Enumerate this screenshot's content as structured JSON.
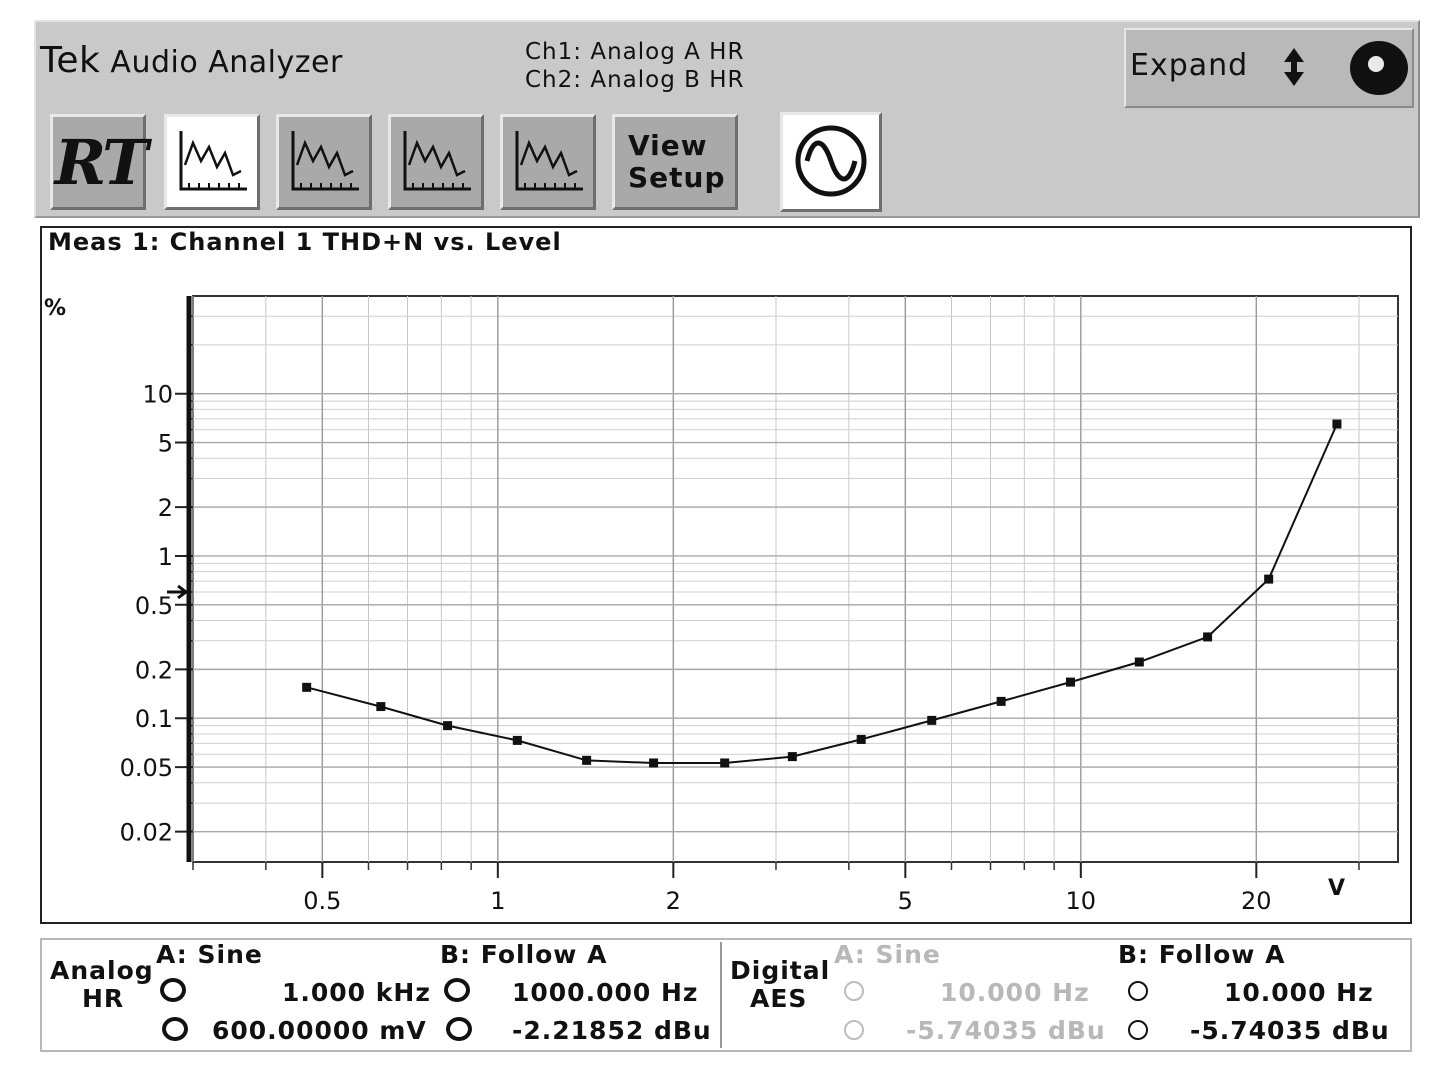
{
  "header": {
    "brand": "Tek",
    "app_name": "Audio Analyzer",
    "ch1": "Ch1: Analog A HR",
    "ch2": "Ch2: Analog B HR",
    "expand_label": "Expand"
  },
  "toolbar": {
    "rt_label": "RT",
    "view_setup_line1": "View",
    "view_setup_line2": "Setup",
    "buttons": [
      "RT",
      "graph-1",
      "graph-2",
      "graph-3",
      "graph-4",
      "view-setup",
      "generator"
    ],
    "selected": "graph-1"
  },
  "plot": {
    "title": "Meas 1: Channel 1 THD+N vs. Level",
    "y_unit": "%",
    "x_unit": "V"
  },
  "chart_data": {
    "type": "line",
    "title": "Meas 1: Channel 1 THD+N vs. Level",
    "xlabel": "V",
    "ylabel": "%",
    "x_scale": "log",
    "y_scale": "log",
    "xlim": [
      0.3,
      35
    ],
    "ylim": [
      0.013,
      40
    ],
    "grid": true,
    "x_ticks": [
      {
        "v": 0.5,
        "label": "0.5"
      },
      {
        "v": 1,
        "label": "1"
      },
      {
        "v": 2,
        "label": "2"
      },
      {
        "v": 5,
        "label": "5"
      },
      {
        "v": 10,
        "label": "10"
      },
      {
        "v": 20,
        "label": "20"
      }
    ],
    "y_ticks": [
      {
        "v": 0.02,
        "label": "0.02"
      },
      {
        "v": 0.05,
        "label": "0.05"
      },
      {
        "v": 0.1,
        "label": "0.1"
      },
      {
        "v": 0.2,
        "label": "0.2"
      },
      {
        "v": 0.5,
        "label": "0.5"
      },
      {
        "v": 1,
        "label": "1"
      },
      {
        "v": 2,
        "label": "2"
      },
      {
        "v": 5,
        "label": "5"
      },
      {
        "v": 10,
        "label": "10"
      }
    ],
    "reference_marker_y": 0.6,
    "series": [
      {
        "points": [
          [
            0.47,
            0.155
          ],
          [
            0.63,
            0.118
          ],
          [
            0.82,
            0.09
          ],
          [
            1.08,
            0.073
          ],
          [
            1.42,
            0.055
          ],
          [
            1.85,
            0.053
          ],
          [
            2.45,
            0.053
          ],
          [
            3.2,
            0.058
          ],
          [
            4.2,
            0.074
          ],
          [
            5.55,
            0.097
          ],
          [
            7.3,
            0.127
          ],
          [
            9.6,
            0.167
          ],
          [
            12.6,
            0.222
          ],
          [
            16.5,
            0.317
          ],
          [
            21.0,
            0.72
          ],
          [
            27.5,
            6.5
          ]
        ]
      }
    ]
  },
  "generator": {
    "analog_label_1": "Analog",
    "analog_label_2": "HR",
    "a_title": "A: Sine",
    "a_freq": "1.000 kHz",
    "a_level": "600.00000 mV",
    "b_title": "B: Follow A",
    "b_freq": "1000.000 Hz",
    "b_level": "-2.21852 dBu",
    "digital_label_1": "Digital",
    "digital_label_2": "AES",
    "da_title": "A: Sine",
    "da_freq": "10.000 Hz",
    "da_level": "-5.74035 dBu",
    "db_title": "B: Follow A",
    "db_freq": "10.000 Hz",
    "db_level": "-5.74035 dBu"
  }
}
